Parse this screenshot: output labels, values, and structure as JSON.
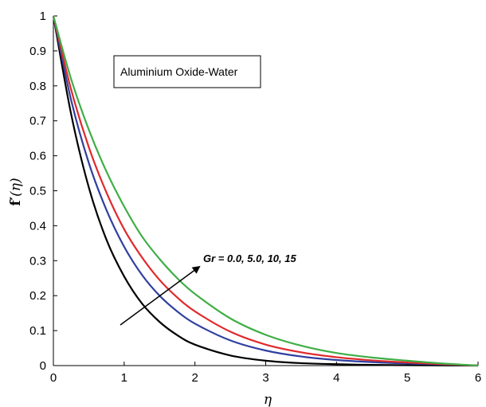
{
  "chart_data": {
    "type": "line",
    "xlabel": "η",
    "ylabel": "f′(η)",
    "ylabel_parts": {
      "f": "f",
      "prime": "′",
      "arg": "(η)"
    },
    "xlim": [
      0,
      6
    ],
    "ylim": [
      0,
      1
    ],
    "x_ticks": [
      "0",
      "1",
      "2",
      "3",
      "4",
      "5",
      "6"
    ],
    "y_ticks": [
      "0",
      "0.1",
      "0.2",
      "0.3",
      "0.4",
      "0.5",
      "0.6",
      "0.7",
      "0.8",
      "0.9",
      "1"
    ],
    "legend_box": "Aluminium Oxide-Water",
    "annotation": "Gr = 0.0, 5.0, 10, 15",
    "grid": false,
    "series": [
      {
        "color": "#000000",
        "x": [
          0,
          0.25,
          0.5,
          0.75,
          1.0,
          1.25,
          1.5,
          1.75,
          2.0,
          2.5,
          3.0,
          3.5,
          4.0,
          4.5,
          5.0,
          5.5,
          6.0
        ],
        "y": [
          1.0,
          0.72,
          0.51,
          0.36,
          0.255,
          0.178,
          0.125,
          0.087,
          0.06,
          0.029,
          0.014,
          0.007,
          0.004,
          0.002,
          0.001,
          0.0005,
          0.0
        ]
      },
      {
        "color": "#2f3fa0",
        "x": [
          0,
          0.25,
          0.5,
          0.75,
          1.0,
          1.25,
          1.5,
          1.75,
          2.0,
          2.5,
          3.0,
          3.5,
          4.0,
          4.5,
          5.0,
          5.5,
          6.0
        ],
        "y": [
          1.0,
          0.76,
          0.58,
          0.445,
          0.34,
          0.26,
          0.2,
          0.155,
          0.12,
          0.072,
          0.043,
          0.026,
          0.016,
          0.01,
          0.006,
          0.003,
          0.0
        ]
      },
      {
        "color": "#e0292b",
        "x": [
          0,
          0.25,
          0.5,
          0.75,
          1.0,
          1.25,
          1.5,
          1.75,
          2.0,
          2.5,
          3.0,
          3.5,
          4.0,
          4.5,
          5.0,
          5.5,
          6.0
        ],
        "y": [
          1.0,
          0.79,
          0.625,
          0.495,
          0.39,
          0.31,
          0.245,
          0.195,
          0.155,
          0.097,
          0.06,
          0.038,
          0.024,
          0.015,
          0.009,
          0.004,
          0.0
        ]
      },
      {
        "color": "#3fae45",
        "x": [
          0,
          0.25,
          0.5,
          0.75,
          1.0,
          1.25,
          1.5,
          1.75,
          2.0,
          2.5,
          3.0,
          3.5,
          4.0,
          4.5,
          5.0,
          5.5,
          6.0
        ],
        "y": [
          1.0,
          0.82,
          0.675,
          0.555,
          0.455,
          0.37,
          0.305,
          0.25,
          0.205,
          0.135,
          0.088,
          0.057,
          0.036,
          0.023,
          0.014,
          0.006,
          0.0
        ]
      }
    ]
  }
}
